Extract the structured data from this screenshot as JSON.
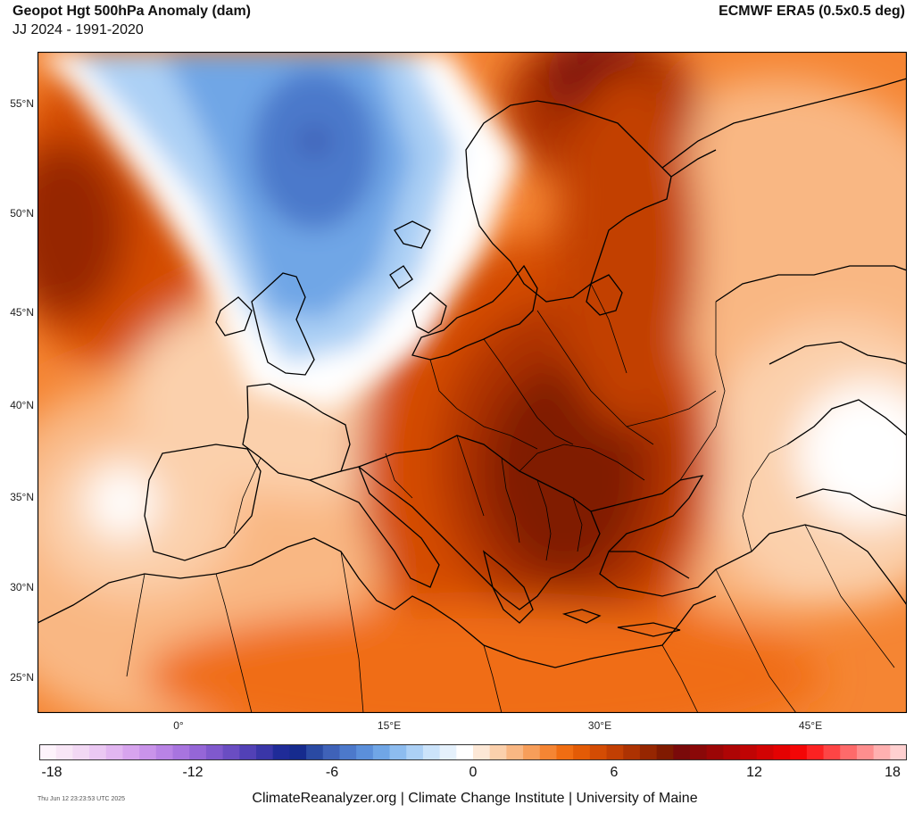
{
  "header": {
    "title": "Geopot Hgt 500hPa Anomaly (dam)",
    "subtitle": "JJ 2024 - 1991-2020",
    "source": "ECMWF ERA5 (0.5x0.5 deg)"
  },
  "map": {
    "lat_labels": [
      "55°N",
      "50°N",
      "45°N",
      "40°N",
      "35°N",
      "30°N",
      "25°N"
    ],
    "lon_labels": [
      "0°",
      "15°E",
      "30°E",
      "45°E"
    ],
    "colors": {
      "land_border": "#000000",
      "frame": "#000000"
    }
  },
  "colorbar": {
    "ticks": [
      "-18",
      "-12",
      "-6",
      "0",
      "6",
      "12",
      "18"
    ],
    "colors": [
      "#fdf3fb",
      "#f8e6f6",
      "#f2d8f4",
      "#ebc8f3",
      "#e2b6f1",
      "#d7a4ee",
      "#c993ea",
      "#b983e5",
      "#a874df",
      "#9566d7",
      "#8059cd",
      "#6a4dc2",
      "#5241b6",
      "#3a36a8",
      "#1f2b98",
      "#162b8e",
      "#2a4aa3",
      "#3f62b8",
      "#4c79cb",
      "#5b8fda",
      "#70a6e6",
      "#8dbcef",
      "#acd0f5",
      "#cbe3fa",
      "#e5f1fc",
      "#ffffff",
      "#fde8d6",
      "#fbd0ac",
      "#f9b783",
      "#f79e5a",
      "#f58533",
      "#f06d12",
      "#e35b06",
      "#d44c04",
      "#c23f03",
      "#ad3202",
      "#962601",
      "#801a01",
      "#7a0a0a",
      "#8a0808",
      "#9c0606",
      "#ae0505",
      "#c00404",
      "#d20303",
      "#e40202",
      "#f40606",
      "#fc2222",
      "#fd4545",
      "#fe6a6a",
      "#fe8e8e",
      "#ffb0b0",
      "#ffd0d0"
    ]
  },
  "footer": {
    "text": "ClimateReanalyzer.org | Climate Change Institute | University of Maine",
    "timestamp": "Thu Jun 12 23:23:53 UTC 2025"
  }
}
